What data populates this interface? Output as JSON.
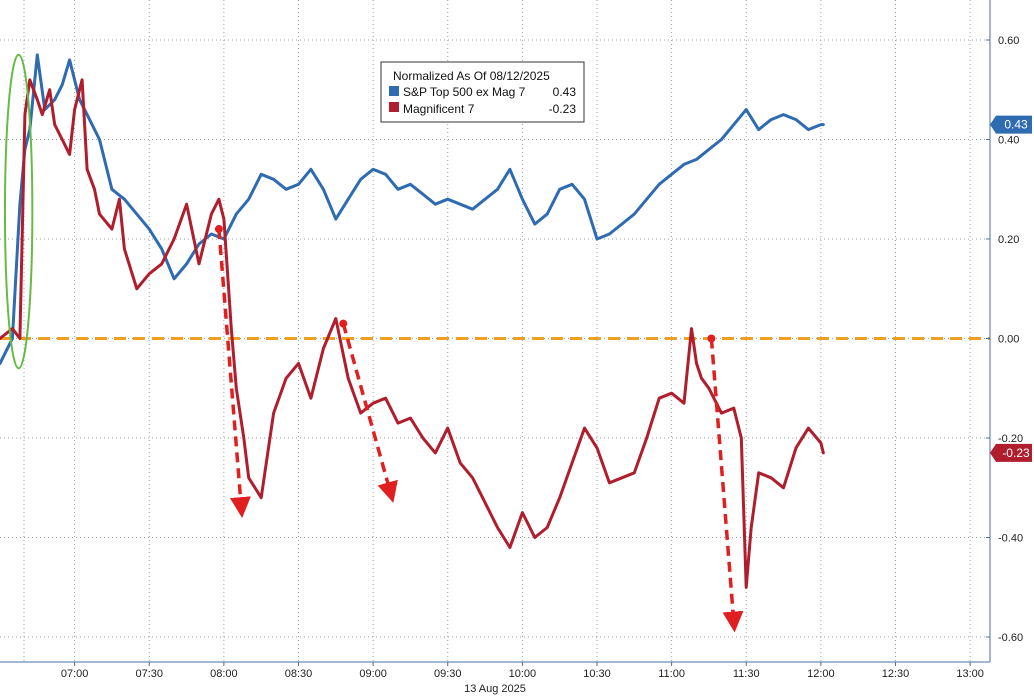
{
  "chart_data": {
    "type": "line",
    "date_label": "13 Aug 2025",
    "x_ticks": [
      "07:00",
      "07:30",
      "08:00",
      "08:30",
      "09:00",
      "09:30",
      "10:00",
      "10:30",
      "11:00",
      "11:30",
      "12:00",
      "12:30",
      "13:00"
    ],
    "y_ticks": [
      "0.60",
      "0.40",
      "0.20",
      "0.00",
      "-0.20",
      "-0.40",
      "-0.60"
    ],
    "ylim": [
      -0.6,
      0.6
    ],
    "xlim": [
      "06:30",
      "13:08"
    ],
    "legend": {
      "title": "Normalized As Of 08/12/2025",
      "placement": "top-center",
      "items": [
        {
          "label": "S&P Top 500 ex Mag 7",
          "value": "0.43",
          "color": "#2e6bb0"
        },
        {
          "label": "Magnificent 7",
          "value": "-0.23",
          "color": "#b01e2d"
        }
      ]
    },
    "series": [
      {
        "name": "S&P Top 500 ex Mag 7",
        "color": "#2e6bb0",
        "last_badge": "0.43",
        "x": [
          "06:30",
          "06:35",
          "06:38",
          "06:40",
          "06:42",
          "06:45",
          "06:48",
          "06:52",
          "06:55",
          "06:58",
          "07:02",
          "07:05",
          "07:10",
          "07:15",
          "07:20",
          "07:25",
          "07:30",
          "07:35",
          "07:40",
          "07:45",
          "07:50",
          "07:55",
          "08:00",
          "08:05",
          "08:10",
          "08:15",
          "08:20",
          "08:25",
          "08:30",
          "08:35",
          "08:40",
          "08:45",
          "08:50",
          "08:55",
          "09:00",
          "09:05",
          "09:10",
          "09:15",
          "09:20",
          "09:25",
          "09:30",
          "09:35",
          "09:40",
          "09:45",
          "09:50",
          "09:55",
          "10:00",
          "10:05",
          "10:10",
          "10:15",
          "10:20",
          "10:25",
          "10:30",
          "10:35",
          "10:40",
          "10:45",
          "10:50",
          "10:55",
          "11:00",
          "11:05",
          "11:10",
          "11:15",
          "11:20",
          "11:25",
          "11:30",
          "11:35",
          "11:40",
          "11:45",
          "11:50",
          "11:55",
          "12:00",
          "12:01"
        ],
        "values": [
          -0.05,
          0.0,
          0.27,
          0.38,
          0.42,
          0.57,
          0.46,
          0.48,
          0.51,
          0.56,
          0.48,
          0.45,
          0.4,
          0.3,
          0.28,
          0.25,
          0.22,
          0.18,
          0.12,
          0.15,
          0.19,
          0.21,
          0.2,
          0.25,
          0.28,
          0.33,
          0.32,
          0.3,
          0.31,
          0.34,
          0.3,
          0.24,
          0.28,
          0.32,
          0.34,
          0.33,
          0.3,
          0.31,
          0.29,
          0.27,
          0.28,
          0.27,
          0.26,
          0.28,
          0.3,
          0.34,
          0.28,
          0.23,
          0.25,
          0.3,
          0.31,
          0.28,
          0.2,
          0.21,
          0.23,
          0.25,
          0.28,
          0.31,
          0.33,
          0.35,
          0.36,
          0.38,
          0.4,
          0.43,
          0.46,
          0.42,
          0.44,
          0.45,
          0.44,
          0.42,
          0.43,
          0.43
        ]
      },
      {
        "name": "Magnificent 7",
        "color": "#b01e2d",
        "last_badge": "-0.23",
        "x": [
          "06:30",
          "06:35",
          "06:38",
          "06:40",
          "06:42",
          "06:45",
          "06:47",
          "06:50",
          "06:52",
          "06:55",
          "06:58",
          "07:00",
          "07:03",
          "07:05",
          "07:08",
          "07:10",
          "07:15",
          "07:18",
          "07:20",
          "07:25",
          "07:30",
          "07:35",
          "07:40",
          "07:45",
          "07:50",
          "07:55",
          "07:58",
          "08:00",
          "08:03",
          "08:05",
          "08:08",
          "08:10",
          "08:15",
          "08:20",
          "08:25",
          "08:30",
          "08:35",
          "08:40",
          "08:45",
          "08:50",
          "08:55",
          "09:00",
          "09:05",
          "09:10",
          "09:15",
          "09:20",
          "09:25",
          "09:30",
          "09:35",
          "09:40",
          "09:45",
          "09:50",
          "09:55",
          "10:00",
          "10:05",
          "10:10",
          "10:15",
          "10:20",
          "10:25",
          "10:30",
          "10:35",
          "10:40",
          "10:45",
          "10:50",
          "10:55",
          "11:00",
          "11:05",
          "11:08",
          "11:10",
          "11:12",
          "11:15",
          "11:20",
          "11:25",
          "11:28",
          "11:30",
          "11:32",
          "11:35",
          "11:40",
          "11:45",
          "11:50",
          "11:55",
          "12:00",
          "12:01"
        ],
        "values": [
          0.0,
          0.02,
          0.0,
          0.45,
          0.52,
          0.48,
          0.45,
          0.5,
          0.43,
          0.4,
          0.37,
          0.46,
          0.52,
          0.34,
          0.3,
          0.25,
          0.22,
          0.28,
          0.18,
          0.1,
          0.13,
          0.15,
          0.2,
          0.27,
          0.15,
          0.25,
          0.28,
          0.24,
          0.02,
          -0.1,
          -0.2,
          -0.28,
          -0.32,
          -0.15,
          -0.08,
          -0.05,
          -0.12,
          -0.02,
          0.04,
          -0.08,
          -0.15,
          -0.13,
          -0.12,
          -0.17,
          -0.16,
          -0.2,
          -0.23,
          -0.18,
          -0.25,
          -0.28,
          -0.33,
          -0.38,
          -0.42,
          -0.35,
          -0.4,
          -0.38,
          -0.32,
          -0.25,
          -0.18,
          -0.22,
          -0.29,
          -0.28,
          -0.27,
          -0.2,
          -0.12,
          -0.11,
          -0.13,
          0.02,
          -0.05,
          -0.08,
          -0.1,
          -0.15,
          -0.14,
          -0.2,
          -0.5,
          -0.38,
          -0.27,
          -0.28,
          -0.3,
          -0.22,
          -0.18,
          -0.21,
          -0.23
        ]
      }
    ],
    "reference_line": {
      "y": 0.0,
      "color": "#f0a020",
      "style": "dashed"
    },
    "annotations": [
      {
        "type": "ellipse",
        "color": "#66bb44",
        "x_range": [
          "06:32",
          "06:43"
        ],
        "y_range": [
          -0.06,
          0.57
        ]
      },
      {
        "type": "arrow",
        "color": "#e02020",
        "from": {
          "x": "07:58",
          "y": 0.22
        },
        "to": {
          "x": "08:07",
          "y": -0.34
        }
      },
      {
        "type": "arrow",
        "color": "#e02020",
        "from": {
          "x": "08:48",
          "y": 0.03
        },
        "to": {
          "x": "09:07",
          "y": -0.31
        }
      },
      {
        "type": "arrow",
        "color": "#e02020",
        "from": {
          "x": "11:16",
          "y": 0.0
        },
        "to": {
          "x": "11:25",
          "y": -0.57
        }
      }
    ]
  }
}
